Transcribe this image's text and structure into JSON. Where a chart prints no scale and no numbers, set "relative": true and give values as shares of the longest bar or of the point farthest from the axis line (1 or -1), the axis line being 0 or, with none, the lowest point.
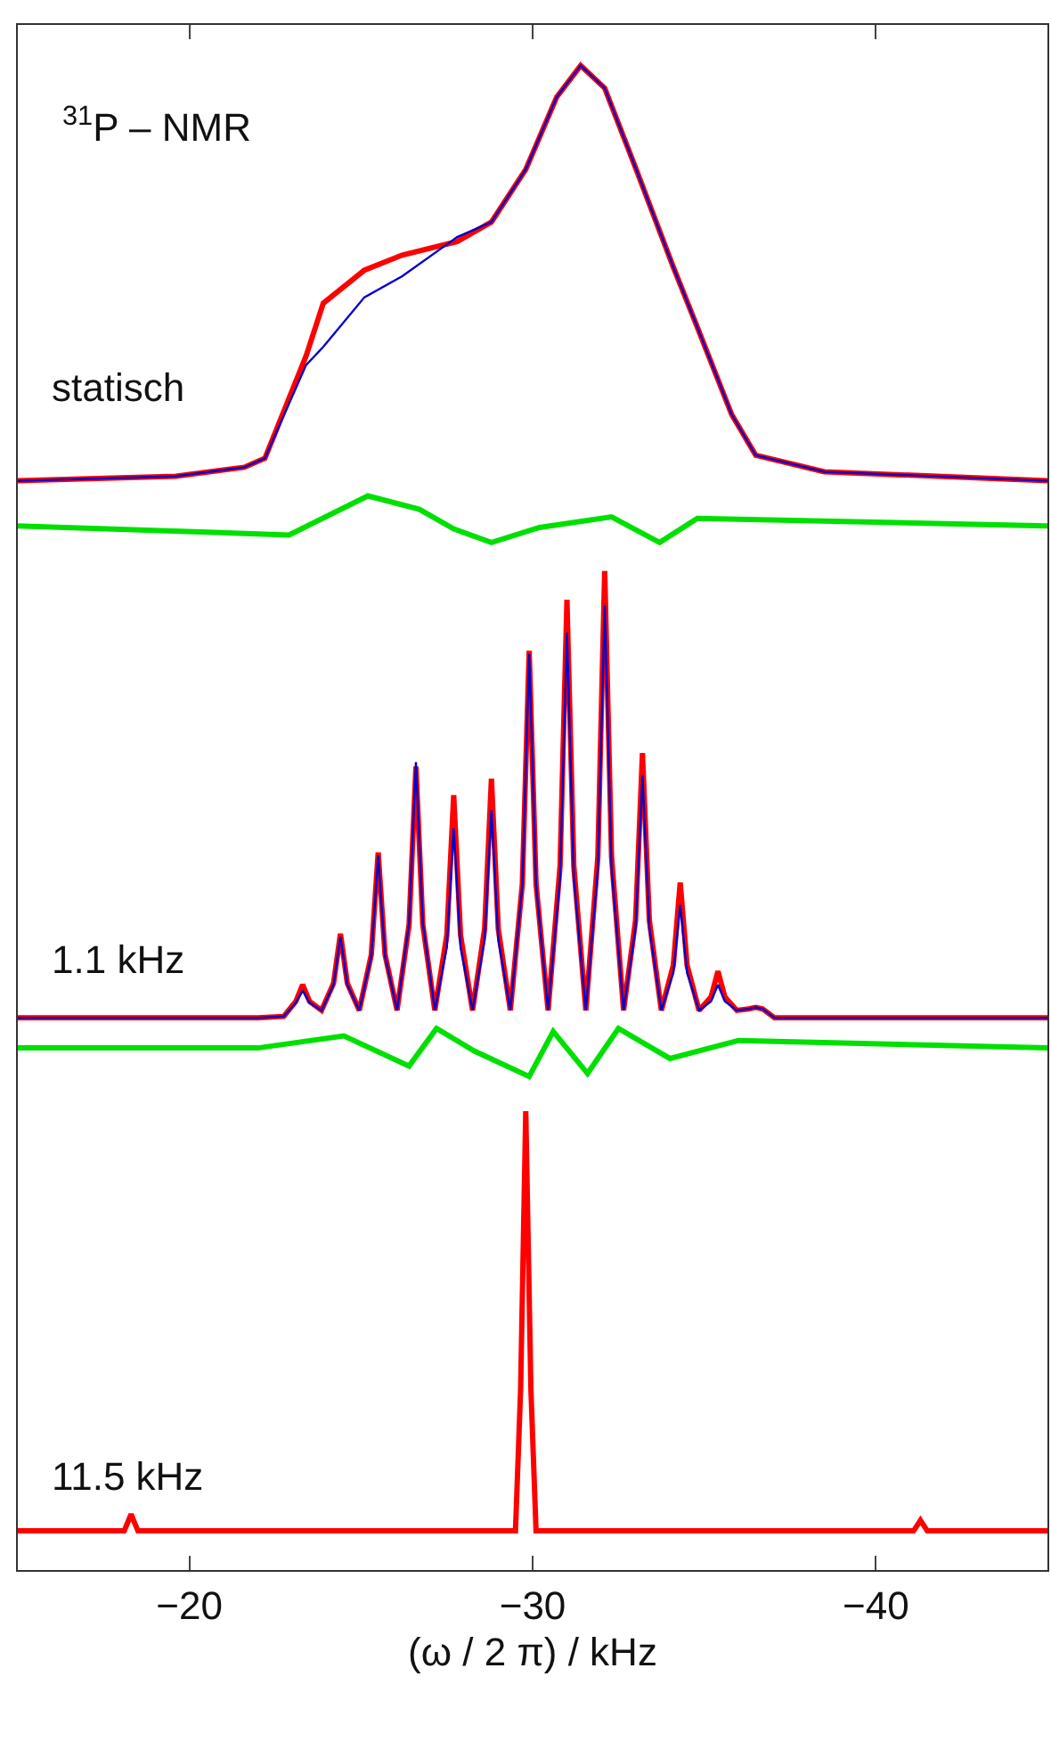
{
  "chart_data": {
    "type": "line",
    "relative": true,
    "tick_labels": "x",
    "xlabel": "(ω / 2 π) / kHz",
    "xlim": [
      -15,
      -45
    ],
    "xticks": [
      {
        "value": -20,
        "label": "−20"
      },
      {
        "value": -30,
        "label": "−30"
      },
      {
        "value": -40,
        "label": "−40"
      }
    ],
    "annotations": [
      "$^{31}$P – NMR",
      "statisch",
      "1.1 kHz",
      "11.5 kHz"
    ],
    "series": [
      {
        "color": "#00e000",
        "x": [
          -15,
          -22.9,
          -25.2,
          -26.7,
          -27.7,
          -28.8,
          -30.2,
          -32.3,
          -33.7,
          -34.8,
          -45
        ],
        "values": [
          0.694,
          0.688,
          0.714,
          0.705,
          0.692,
          0.683,
          0.693,
          0.7,
          0.683,
          0.699,
          0.694
        ]
      },
      {
        "color": "#ff0000",
        "x": [
          -15,
          -19.6,
          -21.6,
          -22.2,
          -23.4,
          -23.9,
          -25.1,
          -26.2,
          -27.8,
          -28.8,
          -29.8,
          -30.7,
          -31.4,
          -32.1,
          -33.0,
          -34.1,
          -34.8,
          -35.8,
          -36.5,
          -38.5,
          -45
        ],
        "values": [
          0.724,
          0.727,
          0.733,
          0.739,
          0.807,
          0.842,
          0.864,
          0.874,
          0.883,
          0.896,
          0.931,
          0.979,
          1.0,
          0.985,
          0.932,
          0.866,
          0.826,
          0.768,
          0.741,
          0.73,
          0.724
        ]
      },
      {
        "color": "#0000cc",
        "x": [
          -15,
          -19.6,
          -21.6,
          -22.2,
          -23.4,
          -23.9,
          -25.1,
          -26.2,
          -27.8,
          -28.8,
          -29.8,
          -30.7,
          -31.4,
          -32.1,
          -33.0,
          -34.1,
          -34.8,
          -35.8,
          -36.5,
          -38.5,
          -45
        ],
        "values": [
          0.724,
          0.727,
          0.733,
          0.739,
          0.801,
          0.813,
          0.846,
          0.86,
          0.886,
          0.896,
          0.931,
          0.979,
          1.0,
          0.985,
          0.932,
          0.866,
          0.826,
          0.768,
          0.741,
          0.73,
          0.724
        ]
      },
      {
        "color": "#00e000",
        "x": [
          -15,
          -22,
          -24.5,
          -26.4,
          -27.2,
          -28.3,
          -29.9,
          -30.6,
          -31.6,
          -32.5,
          -34,
          -36,
          -45
        ],
        "values": [
          0.347,
          0.347,
          0.355,
          0.335,
          0.36,
          0.345,
          0.328,
          0.358,
          0.33,
          0.36,
          0.34,
          0.352,
          0.347
        ]
      },
      {
        "color": "#ff0000",
        "x": [
          -15,
          -22.0,
          -22.75,
          -23.1,
          -23.3,
          -23.5,
          -23.85,
          -24.2,
          -24.4,
          -24.6,
          -24.95,
          -25.3,
          -25.5,
          -25.7,
          -26.05,
          -26.4,
          -26.6,
          -26.8,
          -27.15,
          -27.5,
          -27.7,
          -27.9,
          -28.25,
          -28.6,
          -28.8,
          -29.0,
          -29.35,
          -29.7,
          -29.9,
          -30.1,
          -30.45,
          -30.8,
          -31.0,
          -31.2,
          -31.55,
          -31.9,
          -32.1,
          -32.3,
          -32.65,
          -33.0,
          -33.2,
          -33.4,
          -33.75,
          -34.1,
          -34.3,
          -34.5,
          -34.85,
          -35.2,
          -35.4,
          -35.6,
          -35.95,
          -36.3,
          -36.5,
          -36.7,
          -37.05,
          -38.0,
          -45.0
        ],
        "values": [
          0.367,
          0.367,
          0.368,
          0.378,
          0.389,
          0.378,
          0.372,
          0.39,
          0.423,
          0.39,
          0.372,
          0.409,
          0.477,
          0.409,
          0.372,
          0.429,
          0.534,
          0.429,
          0.372,
          0.422,
          0.515,
          0.422,
          0.372,
          0.426,
          0.526,
          0.426,
          0.372,
          0.456,
          0.611,
          0.456,
          0.372,
          0.468,
          0.645,
          0.468,
          0.372,
          0.474,
          0.664,
          0.474,
          0.372,
          0.432,
          0.543,
          0.432,
          0.372,
          0.402,
          0.457,
          0.402,
          0.372,
          0.381,
          0.398,
          0.381,
          0.372,
          0.373,
          0.374,
          0.373,
          0.367,
          0.367,
          0.367
        ]
      },
      {
        "color": "#0000cc",
        "x": [
          -15,
          -22.0,
          -22.75,
          -23.1,
          -23.3,
          -23.5,
          -23.85,
          -24.2,
          -24.4,
          -24.6,
          -24.95,
          -25.3,
          -25.5,
          -25.7,
          -26.05,
          -26.4,
          -26.6,
          -26.8,
          -27.15,
          -27.5,
          -27.7,
          -27.9,
          -28.25,
          -28.6,
          -28.8,
          -29.0,
          -29.35,
          -29.7,
          -29.9,
          -30.1,
          -30.45,
          -30.8,
          -31.0,
          -31.2,
          -31.55,
          -31.9,
          -32.1,
          -32.3,
          -32.65,
          -33.0,
          -33.2,
          -33.4,
          -33.75,
          -34.1,
          -34.3,
          -34.5,
          -34.85,
          -35.2,
          -35.4,
          -35.6,
          -35.95,
          -36.3,
          -36.5,
          -36.7,
          -37.05,
          -38.0,
          -45.0
        ],
        "values": [
          0.367,
          0.367,
          0.368,
          0.377,
          0.385,
          0.377,
          0.372,
          0.389,
          0.421,
          0.389,
          0.372,
          0.408,
          0.475,
          0.408,
          0.372,
          0.43,
          0.537,
          0.43,
          0.372,
          0.414,
          0.493,
          0.414,
          0.372,
          0.419,
          0.505,
          0.419,
          0.372,
          0.455,
          0.609,
          0.455,
          0.372,
          0.46,
          0.623,
          0.46,
          0.372,
          0.466,
          0.641,
          0.466,
          0.372,
          0.427,
          0.528,
          0.427,
          0.372,
          0.397,
          0.442,
          0.397,
          0.372,
          0.378,
          0.389,
          0.378,
          0.372,
          0.373,
          0.374,
          0.373,
          0.367,
          0.367,
          0.367
        ]
      },
      {
        "color": "#ff0000",
        "x": [
          -15,
          -18.1,
          -18.3,
          -18.5,
          -29.5,
          -29.65,
          -29.8,
          -29.95,
          -30.1,
          -41.1,
          -41.3,
          -41.5,
          -45
        ],
        "values": [
          0.026,
          0.026,
          0.037,
          0.026,
          0.026,
          0.12,
          0.305,
          0.12,
          0.026,
          0.026,
          0.033,
          0.026,
          0.026
        ]
      }
    ]
  }
}
